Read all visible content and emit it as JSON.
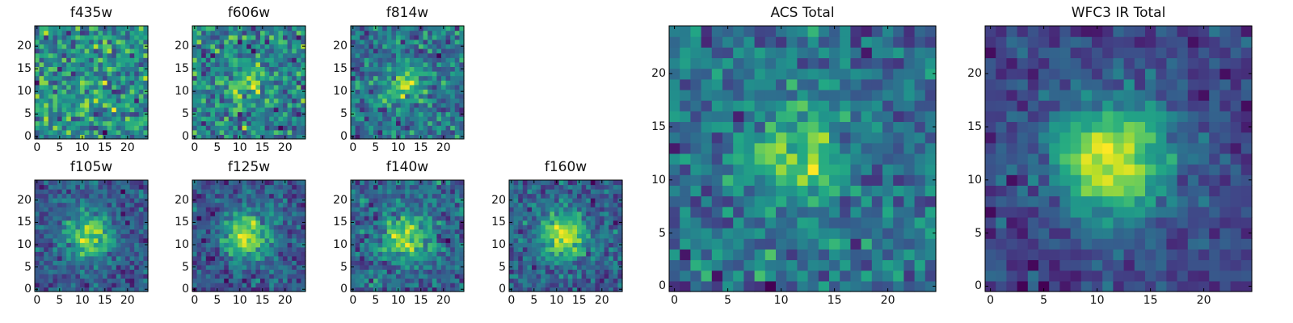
{
  "chart_data": [
    {
      "type": "heatmap",
      "title": "f435w",
      "xlim": [
        0,
        24
      ],
      "ylim": [
        0,
        24
      ],
      "xticks": [
        "0",
        "5",
        "10",
        "15",
        "20"
      ],
      "yticks": [
        "0",
        "5",
        "10",
        "15",
        "20"
      ],
      "colormap": "viridis",
      "seed": 11,
      "noise": 0.8,
      "blob_amp": 0.05,
      "blob_width": 3.0,
      "grid": false
    },
    {
      "type": "heatmap",
      "title": "f606w",
      "xlim": [
        0,
        24
      ],
      "ylim": [
        0,
        24
      ],
      "xticks": [
        "0",
        "5",
        "10",
        "15",
        "20"
      ],
      "yticks": [
        "0",
        "5",
        "10",
        "15",
        "20"
      ],
      "colormap": "viridis",
      "seed": 23,
      "noise": 0.75,
      "blob_amp": 0.2,
      "blob_width": 3.0,
      "grid": false
    },
    {
      "type": "heatmap",
      "title": "f814w",
      "xlim": [
        0,
        24
      ],
      "ylim": [
        0,
        24
      ],
      "xticks": [
        "0",
        "5",
        "10",
        "15",
        "20"
      ],
      "yticks": [
        "0",
        "5",
        "10",
        "15",
        "20"
      ],
      "colormap": "viridis",
      "seed": 37,
      "noise": 0.7,
      "blob_amp": 0.3,
      "blob_width": 3.0,
      "grid": false
    },
    {
      "type": "heatmap",
      "title": "f105w",
      "xlim": [
        0,
        24
      ],
      "ylim": [
        0,
        24
      ],
      "xticks": [
        "0",
        "5",
        "10",
        "15",
        "20"
      ],
      "yticks": [
        "0",
        "5",
        "10",
        "15",
        "20"
      ],
      "colormap": "viridis",
      "seed": 41,
      "noise": 0.5,
      "blob_amp": 0.45,
      "blob_width": 3.5,
      "grid": false
    },
    {
      "type": "heatmap",
      "title": "f125w",
      "xlim": [
        0,
        24
      ],
      "ylim": [
        0,
        24
      ],
      "xticks": [
        "0",
        "5",
        "10",
        "15",
        "20"
      ],
      "yticks": [
        "0",
        "5",
        "10",
        "15",
        "20"
      ],
      "colormap": "viridis",
      "seed": 53,
      "noise": 0.5,
      "blob_amp": 0.5,
      "blob_width": 3.5,
      "grid": false
    },
    {
      "type": "heatmap",
      "title": "f140w",
      "xlim": [
        0,
        24
      ],
      "ylim": [
        0,
        24
      ],
      "xticks": [
        "0",
        "5",
        "10",
        "15",
        "20"
      ],
      "yticks": [
        "0",
        "5",
        "10",
        "15",
        "20"
      ],
      "colormap": "viridis",
      "seed": 67,
      "noise": 0.55,
      "blob_amp": 0.4,
      "blob_width": 3.5,
      "grid": false
    },
    {
      "type": "heatmap",
      "title": "f160w",
      "xlim": [
        0,
        24
      ],
      "ylim": [
        0,
        24
      ],
      "xticks": [
        "0",
        "5",
        "10",
        "15",
        "20"
      ],
      "yticks": [
        "0",
        "5",
        "10",
        "15",
        "20"
      ],
      "colormap": "viridis",
      "seed": 79,
      "noise": 0.5,
      "blob_amp": 0.45,
      "blob_width": 3.5,
      "grid": false
    },
    {
      "type": "heatmap",
      "title": "ACS Total",
      "xlim": [
        0,
        24
      ],
      "ylim": [
        0,
        24
      ],
      "xticks": [
        "0",
        "5",
        "10",
        "15",
        "20"
      ],
      "yticks": [
        "0",
        "5",
        "10",
        "15",
        "20"
      ],
      "colormap": "viridis",
      "seed": 97,
      "noise": 0.6,
      "blob_amp": 0.35,
      "blob_width": 2.8,
      "grid": false
    },
    {
      "type": "heatmap",
      "title": "WFC3 IR Total",
      "xlim": [
        0,
        24
      ],
      "ylim": [
        0,
        24
      ],
      "xticks": [
        "0",
        "5",
        "10",
        "15",
        "20"
      ],
      "yticks": [
        "0",
        "5",
        "10",
        "15",
        "20"
      ],
      "colormap": "viridis",
      "seed": 113,
      "noise": 0.35,
      "blob_amp": 0.55,
      "blob_width": 3.8,
      "grid": false
    }
  ]
}
